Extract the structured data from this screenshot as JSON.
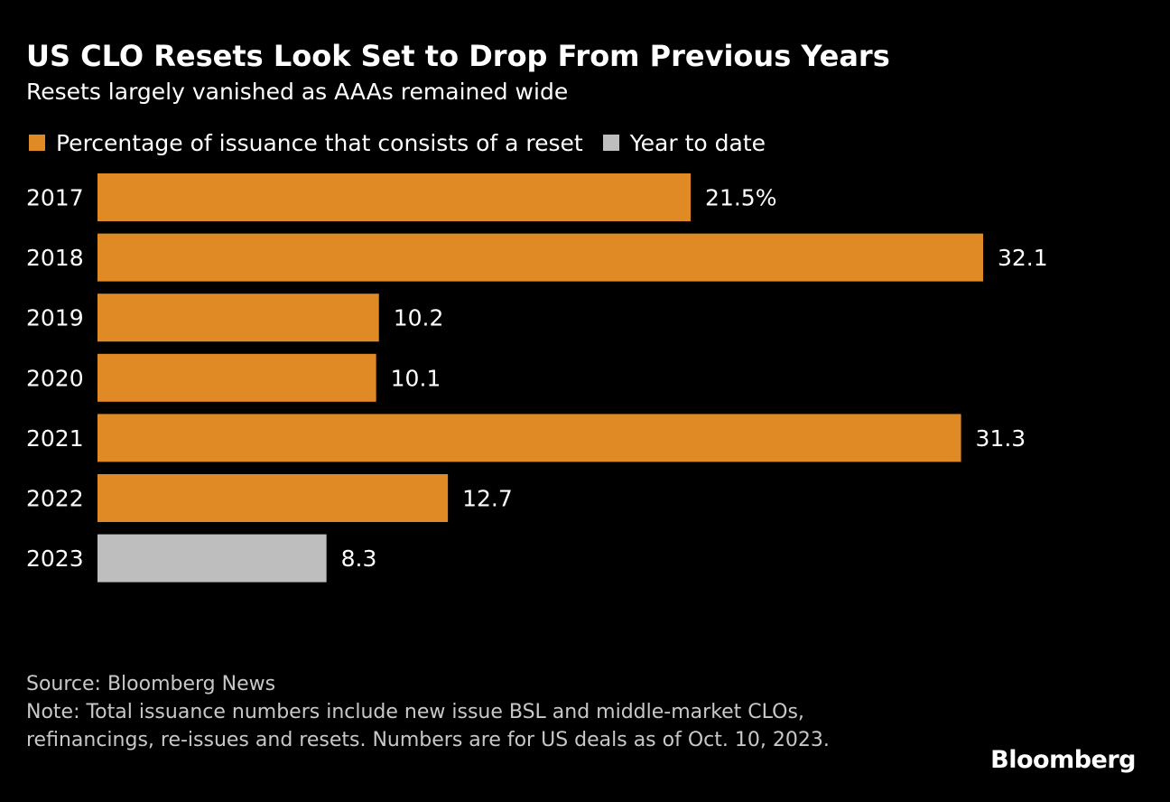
{
  "header": {
    "title": "US CLO Resets Look Set to Drop From Previous Years",
    "subtitle": "Resets largely vanished as AAAs remained wide"
  },
  "legend": {
    "items": [
      {
        "label": "Percentage of issuance that consists of a reset",
        "color": "#E08A25"
      },
      {
        "label": "Year to date",
        "color": "#BEBEBE"
      }
    ]
  },
  "footer": {
    "source": "Source: Bloomberg News",
    "note": "Note: Total issuance numbers include new issue BSL and middle-market CLOs, refinancings, re-issues and resets. Numbers are for US deals as of Oct. 10, 2023."
  },
  "brand": {
    "logo_text": "Bloomberg"
  },
  "chart_data": {
    "type": "bar",
    "orientation": "horizontal",
    "categories": [
      "2017",
      "2018",
      "2019",
      "2020",
      "2021",
      "2022",
      "2023"
    ],
    "values": [
      21.5,
      32.1,
      10.2,
      10.1,
      31.3,
      12.7,
      8.3
    ],
    "value_labels": [
      "21.5%",
      "32.1",
      "10.2",
      "10.1",
      "31.3",
      "12.7",
      "8.3"
    ],
    "series_by_category": [
      "Percentage of issuance that consists of a reset",
      "Percentage of issuance that consists of a reset",
      "Percentage of issuance that consists of a reset",
      "Percentage of issuance that consists of a reset",
      "Percentage of issuance that consists of a reset",
      "Percentage of issuance that consists of a reset",
      "Year to date"
    ],
    "colors": {
      "reset": "#E08A25",
      "ytd": "#BEBEBE"
    },
    "xlim": [
      0,
      32.1
    ],
    "grid": false
  }
}
